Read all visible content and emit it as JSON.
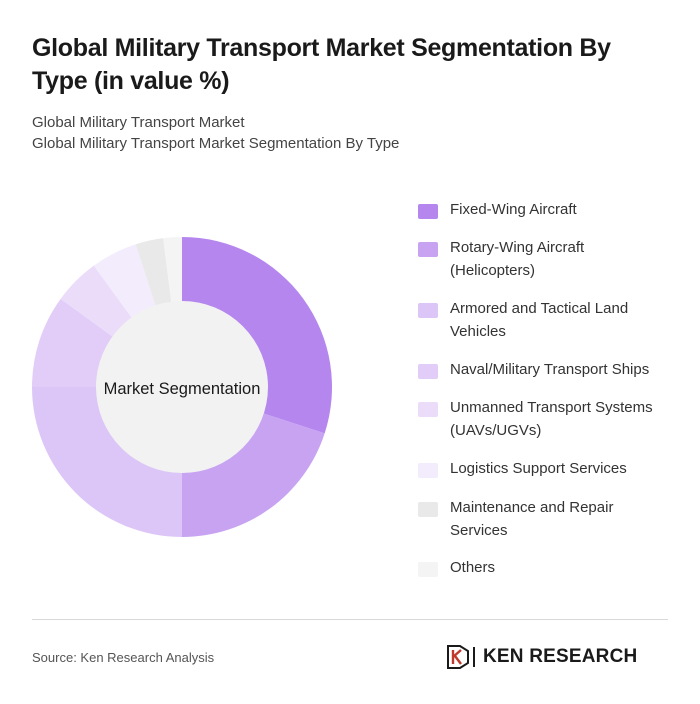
{
  "header": {
    "title": "Global Military Transport Market Segmentation By Type (in value %)",
    "subtitle_line1": "Global Military Transport Market",
    "subtitle_line2": "Global Military Transport Market Segmentation By Type"
  },
  "chart_data": {
    "type": "pie",
    "variant": "donut",
    "center_label": "Market Segmentation",
    "legend_position": "right",
    "categories": [
      "Fixed-Wing Aircraft",
      "Rotary-Wing Aircraft (Helicopters)",
      "Armored and Tactical Land Vehicles",
      "Naval/Military Transport Ships",
      "Unmanned Transport Systems (UAVs/UGVs)",
      "Logistics Support Services",
      "Maintenance and Repair Services",
      "Others"
    ],
    "values": [
      30,
      20,
      25,
      10,
      5,
      5,
      3,
      2
    ],
    "colors": [
      "#b587ee",
      "#c7a3f2",
      "#dcc6f7",
      "#e2cdf8",
      "#ebdcfa",
      "#f3ecfc",
      "#e9e9e9",
      "#f4f4f4"
    ]
  },
  "footer": {
    "source": "Source: Ken Research Analysis",
    "brand": "KEN RESEARCH",
    "logo_icon": "ken-research-logo-icon"
  }
}
